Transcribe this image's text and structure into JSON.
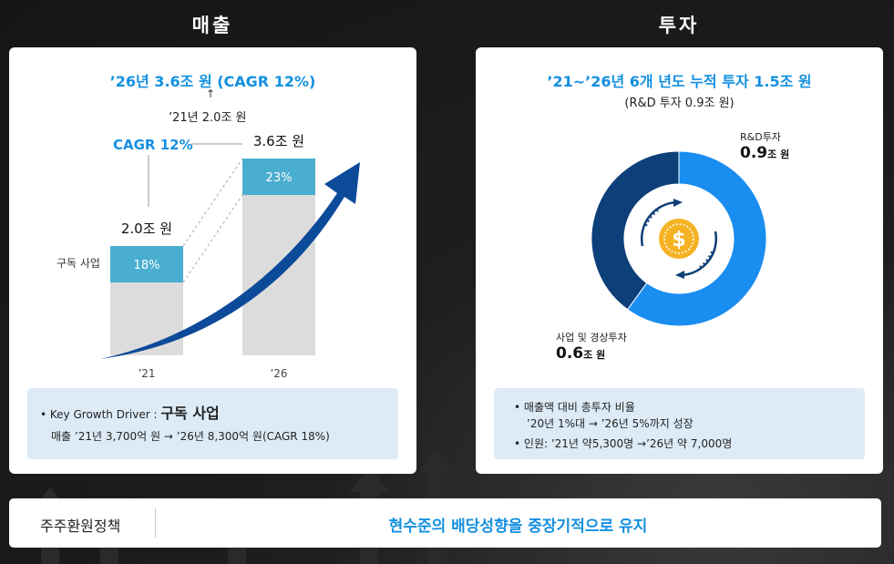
{
  "sections": {
    "revenue_title": "매출",
    "investment_title": "투자"
  },
  "revenue": {
    "headline": "’26년 3.6조 원 (CAGR 12%)",
    "sub_headline": "’21년 2.0조 원",
    "cagr_label": "CAGR 12%",
    "segment_label": "구독 사업",
    "driver_prefix": "Key Growth Driver : ",
    "driver_emphasis": "구독 사업",
    "driver_detail": "매출 ’21년 3,700억 원 → ’26년 8,300억 원(CAGR 18%)"
  },
  "investment": {
    "headline": "’21~’26년 6개 년도 누적 투자 1.5조 원",
    "sub_headline": "(R&D 투자 0.9조 원)",
    "note_1a": "매출액 대비 총투자 비율",
    "note_1b": "’20년 1%대 → ’26년 5%까지 성장",
    "note_2": "인원: ’21년 약5,300명 →’26년 약 7,000명",
    "center_icon": "dollar-cycle-icon"
  },
  "policy": {
    "label": "주주환원정책",
    "text": "현수준의 배당성향을 중장기적으로 유지"
  },
  "colors": {
    "accent_blue": "#1490e0",
    "bar_gray": "#dcdcdc",
    "bar_teal": "#4aaed0",
    "donut_light": "#1a8df0",
    "donut_dark": "#0d3f78",
    "box_bg": "#ddebf7"
  },
  "chart_data": [
    {
      "type": "bar",
      "categories": [
        "’21",
        "’26"
      ],
      "values": [
        2.0,
        3.6
      ],
      "value_labels": [
        "2.0조 원",
        "3.6조 원"
      ],
      "segment_share_labels": [
        "18%",
        "23%"
      ],
      "segment_share": [
        18,
        23
      ],
      "ylim": [
        0,
        4.0
      ]
    },
    {
      "type": "pie",
      "slices": [
        {
          "label": "R&D투자",
          "value": 0.9,
          "value_text": "0.9",
          "unit": "조 원"
        },
        {
          "label": "사업 및 경상투자",
          "value": 0.6,
          "value_text": "0.6",
          "unit": "조 원"
        }
      ]
    }
  ]
}
